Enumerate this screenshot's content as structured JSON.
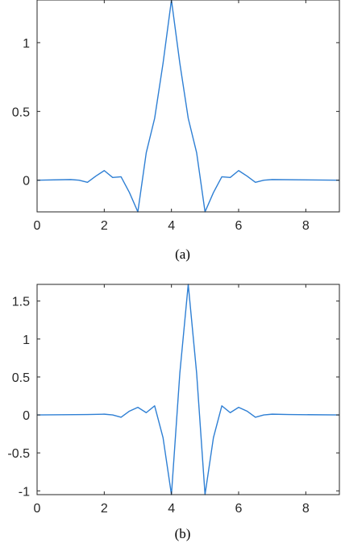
{
  "chart_data": [
    {
      "type": "line",
      "caption": "(a)",
      "xlim": [
        0,
        9
      ],
      "ylim": [
        -0.23,
        1.31
      ],
      "xticks": [
        0,
        2,
        4,
        6,
        8
      ],
      "xtick_labels": [
        "0",
        "2",
        "4",
        "6",
        "8"
      ],
      "yticks": [
        0,
        0.5,
        1
      ],
      "ytick_labels": [
        "0",
        "0.5",
        "1"
      ],
      "grid": false,
      "series": [
        {
          "color": "#2e7fd4",
          "x": [
            0,
            1,
            1.25,
            1.5,
            1.75,
            2,
            2.25,
            2.5,
            2.75,
            3,
            3.25,
            3.5,
            3.75,
            4,
            4.25,
            4.5,
            4.75,
            5,
            5.25,
            5.5,
            5.75,
            6,
            6.25,
            6.5,
            6.75,
            7,
            9
          ],
          "y": [
            0,
            0.005,
            0.0,
            -0.015,
            0.03,
            0.07,
            0.02,
            0.025,
            -0.09,
            -0.23,
            0.2,
            0.45,
            0.85,
            1.31,
            0.85,
            0.45,
            0.2,
            -0.23,
            -0.09,
            0.025,
            0.02,
            0.07,
            0.03,
            -0.015,
            0.0,
            0.005,
            0
          ]
        }
      ]
    },
    {
      "type": "line",
      "caption": "(b)",
      "xlim": [
        0,
        9
      ],
      "ylim": [
        -1.05,
        1.72
      ],
      "xticks": [
        0,
        2,
        4,
        6,
        8
      ],
      "xtick_labels": [
        "0",
        "2",
        "4",
        "6",
        "8"
      ],
      "yticks": [
        -1,
        -0.5,
        0,
        0.5,
        1,
        1.5
      ],
      "ytick_labels": [
        "-1",
        "-0.5",
        "0",
        "0.5",
        "1",
        "1.5"
      ],
      "grid": false,
      "series": [
        {
          "color": "#2e7fd4",
          "x": [
            0,
            1.5,
            2,
            2.25,
            2.5,
            2.75,
            3,
            3.25,
            3.5,
            3.75,
            4,
            4.25,
            4.5,
            4.75,
            5,
            5.25,
            5.5,
            5.75,
            6,
            6.25,
            6.5,
            6.75,
            7,
            7.5,
            9
          ],
          "y": [
            0,
            0.005,
            0.01,
            0.0,
            -0.03,
            0.05,
            0.1,
            0.03,
            0.12,
            -0.3,
            -1.05,
            0.55,
            1.72,
            0.55,
            -1.05,
            -0.3,
            0.12,
            0.03,
            0.1,
            0.05,
            -0.03,
            0.0,
            0.01,
            0.005,
            0
          ]
        }
      ]
    }
  ]
}
